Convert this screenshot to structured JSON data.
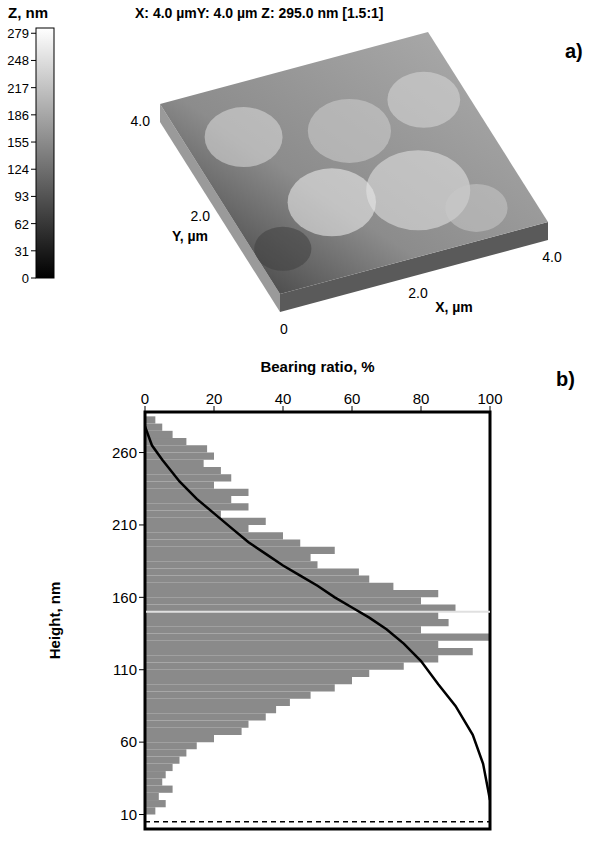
{
  "chart_data": [
    {
      "type": "surface",
      "label": "a)",
      "title": "X: 4.0 µmY: 4.0 µm Z: 295.0 nm [1.5:1]",
      "xlabel": "X, µm",
      "ylabel": "Y, µm",
      "xlim": [
        0,
        4
      ],
      "xticks": [
        0,
        {
          "value": 2,
          "label": "2.0"
        },
        {
          "value": 4,
          "label": "4.0"
        }
      ],
      "ylim": [
        0,
        4
      ],
      "yticks": [
        {
          "value": 2,
          "label": "2.0"
        },
        {
          "value": 4,
          "label": "4.0"
        }
      ],
      "colorbar": {
        "label": "Z, nm",
        "range": [
          0,
          285
        ],
        "ticks": [
          0,
          31,
          62,
          93,
          124,
          155,
          186,
          217,
          248,
          279
        ]
      }
    },
    {
      "type": "histogram",
      "label": "b)",
      "xlabel": "Bearing ratio, %",
      "ylabel": "Height, nm",
      "orientation": "horizontal",
      "color": "#8a8a8a",
      "bins": [
        10,
        15,
        20,
        25,
        30,
        35,
        40,
        45,
        50,
        55,
        60,
        65,
        70,
        75,
        80,
        85,
        90,
        95,
        100,
        105,
        110,
        115,
        120,
        125,
        130,
        135,
        140,
        145,
        150,
        155,
        160,
        165,
        170,
        175,
        180,
        185,
        190,
        195,
        200,
        205,
        210,
        215,
        220,
        225,
        230,
        235,
        240,
        245,
        250,
        255,
        260,
        265,
        270,
        275,
        280,
        285
      ],
      "values": [
        3,
        6,
        4,
        8,
        5,
        6,
        8,
        10,
        12,
        15,
        20,
        28,
        30,
        35,
        38,
        42,
        48,
        55,
        60,
        65,
        75,
        85,
        95,
        85,
        100,
        80,
        88,
        85,
        90,
        80,
        85,
        72,
        65,
        62,
        50,
        48,
        55,
        45,
        40,
        30,
        35,
        22,
        30,
        25,
        30,
        20,
        25,
        22,
        17,
        20,
        18,
        12,
        8,
        5,
        3
      ],
      "xlim": [
        0,
        100
      ],
      "xticks": [
        0,
        20,
        40,
        60,
        80,
        100
      ],
      "ylim": [
        0,
        288
      ],
      "yticks": [
        10,
        60,
        110,
        160,
        210,
        260
      ],
      "mean_line": 150,
      "dashed_line": 5,
      "bearing_curve": {
        "color": "#000000",
        "x": [
          0,
          2,
          5,
          10,
          15,
          20,
          25,
          30,
          35,
          40,
          45,
          50,
          55,
          60,
          65,
          70,
          75,
          80,
          85,
          90,
          95,
          98,
          100
        ],
        "y": [
          278,
          265,
          255,
          240,
          228,
          218,
          208,
          198,
          190,
          182,
          175,
          168,
          160,
          153,
          146,
          138,
          128,
          116,
          100,
          85,
          65,
          45,
          20
        ]
      }
    }
  ]
}
